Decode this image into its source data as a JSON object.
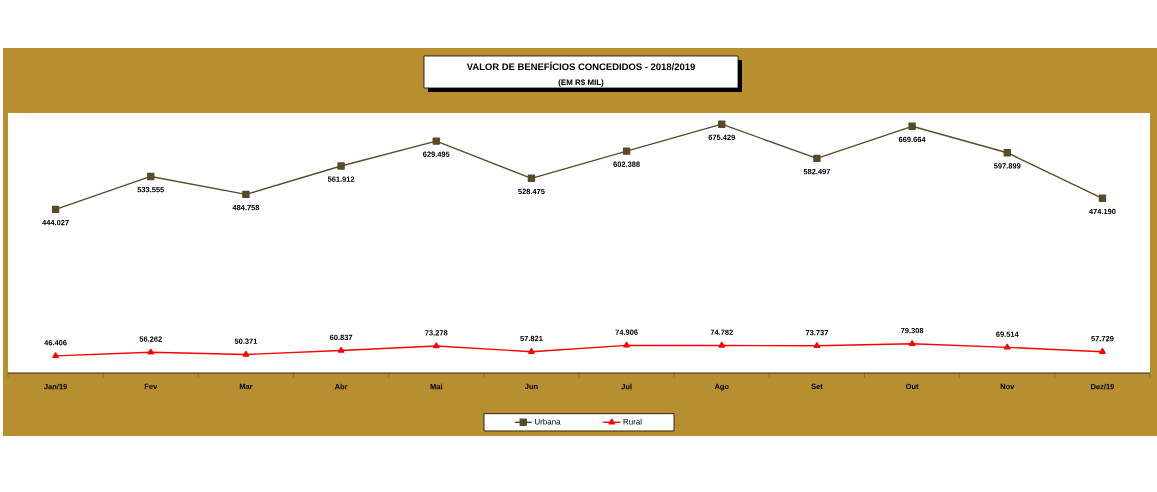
{
  "chart_data": {
    "type": "line",
    "title": "VALOR DE BENEFÍCIOS CONCEDIDOS - 2018/2019",
    "subtitle": "(EM R$ MIL)",
    "categories": [
      "Jan/19",
      "Fev",
      "Mar",
      "Abr",
      "Mai",
      "Jun",
      "Jul",
      "Ago",
      "Set",
      "Out",
      "Nov",
      "Dez/19"
    ],
    "series": [
      {
        "name": "Urbana",
        "color": "#5a4a2c",
        "marker": "square",
        "values": [
          444027,
          533555,
          484758,
          561912,
          629495,
          528475,
          602388,
          675429,
          582497,
          669664,
          597899,
          474190
        ],
        "value_labels": [
          "444.027",
          "533.555",
          "484.758",
          "561.912",
          "629.495",
          "528.475",
          "602.388",
          "675.429",
          "582.497",
          "669.664",
          "597.899",
          "474.190"
        ]
      },
      {
        "name": "Rural",
        "color": "#ff0000",
        "marker": "triangle",
        "values": [
          46406,
          56262,
          50371,
          60837,
          73278,
          57821,
          74906,
          74782,
          73737,
          79308,
          69514,
          57729
        ],
        "value_labels": [
          "46.406",
          "56.262",
          "50.371",
          "60.837",
          "73.278",
          "57.821",
          "74.906",
          "74.782",
          "73.737",
          "79.308",
          "69.514",
          "57.729"
        ]
      }
    ],
    "legend": "bottom",
    "line_style": "solid"
  }
}
